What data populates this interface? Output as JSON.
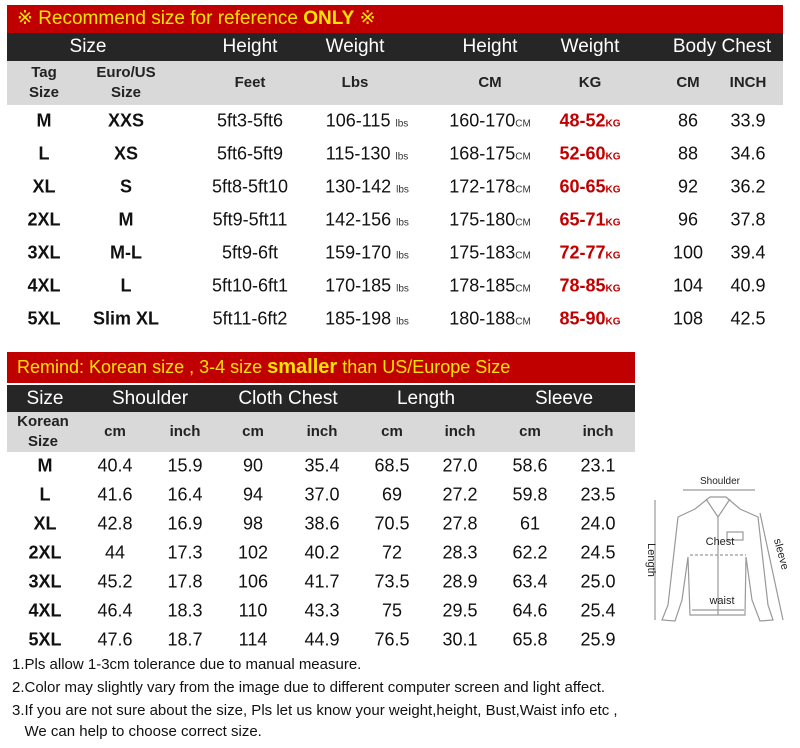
{
  "t1": {
    "banner_pre": "※ Recommend size for reference ",
    "banner_bold": "ONLY",
    "banner_post": " ※",
    "headers": [
      "Size",
      "Height",
      "Weight",
      "Height",
      "Weight",
      "Body Chest"
    ],
    "subheaders": [
      "Tag\nSize",
      "Euro/US\nSize",
      "Feet",
      "Lbs",
      "CM",
      "KG",
      "CM",
      "INCH"
    ],
    "lbs_unit": "lbs",
    "cm_unit": "CM",
    "kg_unit": "KG",
    "rows": [
      [
        "M",
        "XXS",
        "5ft3-5ft6",
        "106-115",
        "160-170",
        "48-52",
        "86",
        "33.9"
      ],
      [
        "L",
        "XS",
        "5ft6-5ft9",
        "115-130",
        "168-175",
        "52-60",
        "88",
        "34.6"
      ],
      [
        "XL",
        "S",
        "5ft8-5ft10",
        "130-142",
        "172-178",
        "60-65",
        "92",
        "36.2"
      ],
      [
        "2XL",
        "M",
        "5ft9-5ft11",
        "142-156",
        "175-180",
        "65-71",
        "96",
        "37.8"
      ],
      [
        "3XL",
        "M-L",
        "5ft9-6ft",
        "159-170",
        "175-183",
        "72-77",
        "100",
        "39.4"
      ],
      [
        "4XL",
        "L",
        "5ft10-6ft1",
        "170-185",
        "178-185",
        "78-85",
        "104",
        "40.9"
      ],
      [
        "5XL",
        "Slim XL",
        "5ft11-6ft2",
        "185-198",
        "180-188",
        "85-90",
        "108",
        "42.5"
      ]
    ]
  },
  "t2": {
    "banner_pre": "Remind: Korean size , 3-4 size ",
    "banner_bold": "smaller",
    "banner_post": " than US/Europe Size",
    "headers": [
      "Size",
      "Shoulder",
      "Cloth Chest",
      "Length",
      "Sleeve"
    ],
    "subheaders": [
      "Korean\nSize",
      "cm",
      "inch",
      "cm",
      "inch",
      "cm",
      "inch",
      "cm",
      "inch"
    ],
    "rows": [
      [
        "M",
        "40.4",
        "15.9",
        "90",
        "35.4",
        "68.5",
        "27.0",
        "58.6",
        "23.1"
      ],
      [
        "L",
        "41.6",
        "16.4",
        "94",
        "37.0",
        "69",
        "27.2",
        "59.8",
        "23.5"
      ],
      [
        "XL",
        "42.8",
        "16.9",
        "98",
        "38.6",
        "70.5",
        "27.8",
        "61",
        "24.0"
      ],
      [
        "2XL",
        "44",
        "17.3",
        "102",
        "40.2",
        "72",
        "28.3",
        "62.2",
        "24.5"
      ],
      [
        "3XL",
        "45.2",
        "17.8",
        "106",
        "41.7",
        "73.5",
        "28.9",
        "63.4",
        "25.0"
      ],
      [
        "4XL",
        "46.4",
        "18.3",
        "110",
        "43.3",
        "75",
        "29.5",
        "64.6",
        "25.4"
      ],
      [
        "5XL",
        "47.6",
        "18.7",
        "114",
        "44.9",
        "76.5",
        "30.1",
        "65.8",
        "25.9"
      ]
    ]
  },
  "diagram": {
    "shoulder": "Shoulder",
    "chest": "Chest",
    "length": "Length",
    "sleeve": "sleeve",
    "waist": "waist"
  },
  "notes": [
    "1.Pls allow 1-3cm tolerance due to manual measure.",
    "2.Color may slightly vary from the image due to different computer screen and light affect.",
    "3.If you are not sure about the size, Pls let us know your weight,height, Bust,Waist info etc ,",
    "   We can help to choose correct size."
  ],
  "colors": {
    "banner": "#c00000",
    "banner_text": "#ffe400",
    "header": "#262626",
    "subheader": "#d9d9d9",
    "kg": "#c00000"
  }
}
